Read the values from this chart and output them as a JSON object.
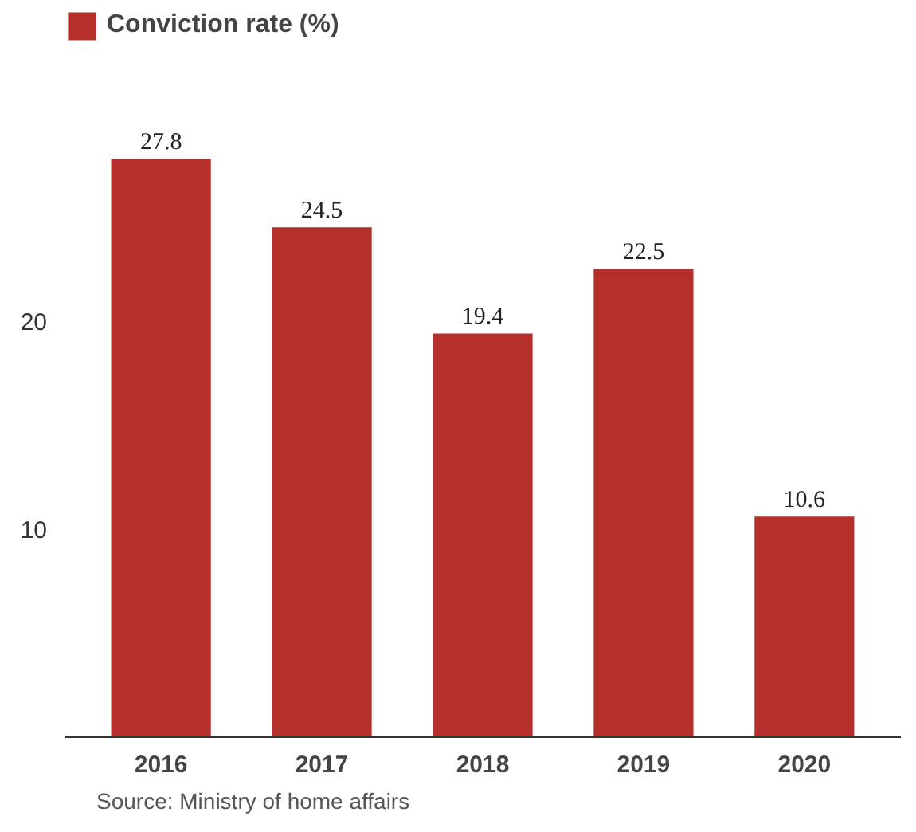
{
  "chart_data": {
    "type": "bar",
    "categories": [
      "2016",
      "2017",
      "2018",
      "2019",
      "2020"
    ],
    "series": [
      {
        "name": "Conviction rate (%)",
        "color": "#b5302a",
        "values": [
          27.8,
          24.5,
          19.4,
          22.5,
          10.6
        ]
      }
    ],
    "ylim": [
      0,
      35
    ],
    "yticks": [
      10,
      20
    ],
    "grid": false,
    "legend": "top left",
    "data_labels": true,
    "annotations": [
      "Source: Ministry of home affairs"
    ]
  }
}
